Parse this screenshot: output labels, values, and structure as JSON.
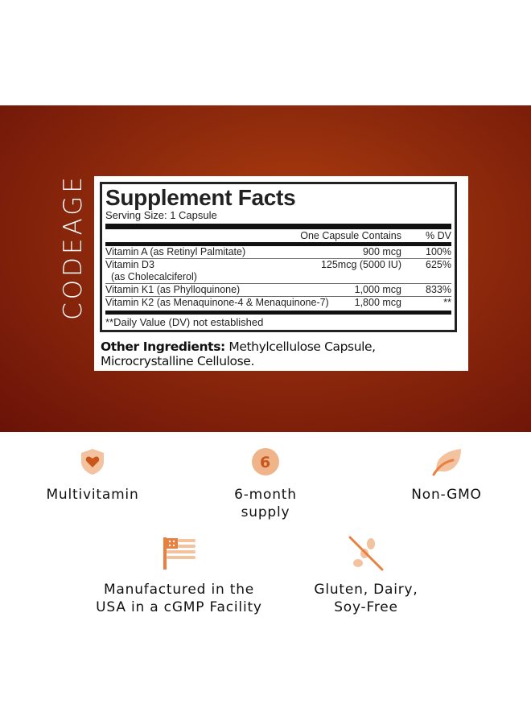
{
  "brand": "CODEAGE",
  "facts": {
    "title": "Supplement Facts",
    "serving": "Serving Size: 1 Capsule",
    "col_amount": "One Capsule Contains",
    "col_dv": "% DV",
    "rows": [
      {
        "name": "Vitamin A (as Retinyl Palmitate)",
        "sub": "",
        "amount": "900 mcg",
        "dv": "100%"
      },
      {
        "name": "Vitamin D3",
        "sub": "(as Cholecalciferol)",
        "amount": "125mcg (5000 IU)",
        "dv": "625%"
      },
      {
        "name": "Vitamin K1 (as Phylloquinone)",
        "sub": "",
        "amount": "1,000 mcg",
        "dv": "833%"
      },
      {
        "name": "Vitamin K2 (as Menaquinone-4 & Menaquinone-7)",
        "sub": "",
        "amount": "1,800 mcg",
        "dv": "**"
      }
    ],
    "note": "**Daily Value (DV) not established",
    "other_label": "Other Ingredients:",
    "other_text": " Methylcellulose Capsule, Microcrystalline Cellulose."
  },
  "features": [
    {
      "icon": "shield-heart-icon",
      "line1": "Multivitamin",
      "line2": ""
    },
    {
      "icon": "six-circle-icon",
      "line1": "6-month",
      "line2": "supply"
    },
    {
      "icon": "leaf-icon",
      "line1": "Non-GMO",
      "line2": ""
    },
    {
      "icon": "usa-flag-icon",
      "line1": "Manufactured in the",
      "line2": "USA in a cGMP Facility"
    },
    {
      "icon": "no-wheat-icon",
      "line1": "Gluten, Dairy,",
      "line2": "Soy-Free"
    }
  ],
  "colors": {
    "accent": "#e8803f",
    "accent_light": "#f3c29f",
    "banner": "#8e2a0c"
  }
}
